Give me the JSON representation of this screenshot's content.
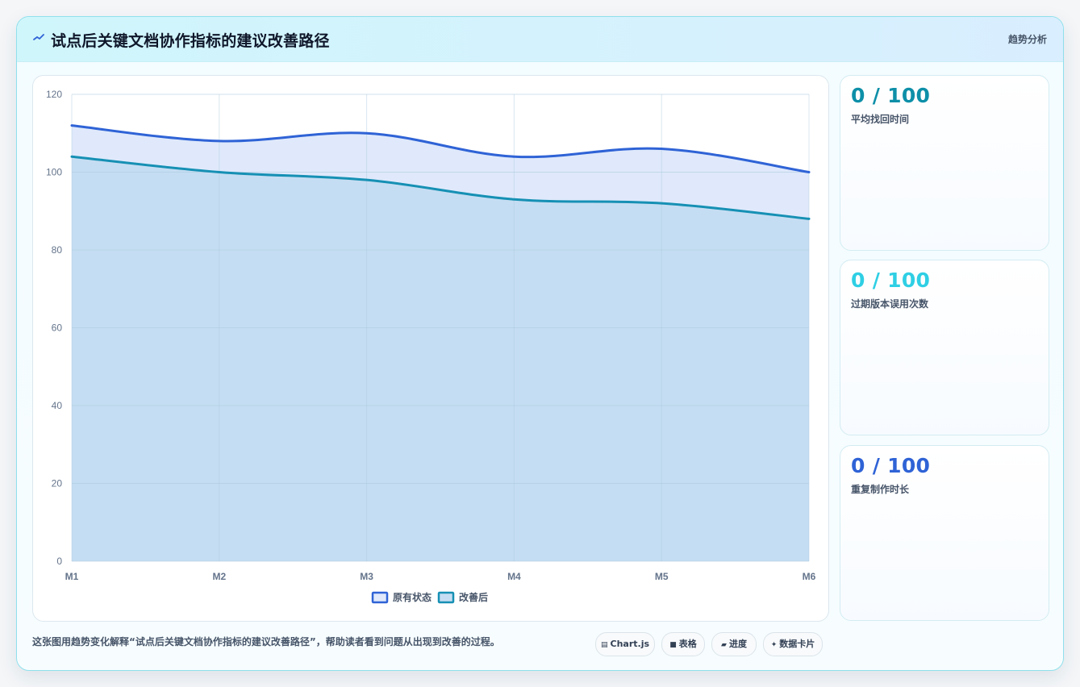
{
  "header": {
    "title": "试点后关键文档协作指标的建议改善路径",
    "tag": "趋势分析",
    "logo_icon": "trend-line-icon"
  },
  "chart_data": {
    "type": "area",
    "categories": [
      "M1",
      "M2",
      "M3",
      "M4",
      "M5",
      "M6"
    ],
    "series": [
      {
        "name": "原有状态",
        "values": [
          112,
          108,
          110,
          104,
          106,
          100
        ],
        "color": "#2f63d6",
        "fill": "#dfe9fb"
      },
      {
        "name": "改善后",
        "values": [
          104,
          100,
          98,
          93,
          92,
          88
        ],
        "color": "#1690b4",
        "fill": "#c5ddf2"
      }
    ],
    "ylim": [
      0,
      120
    ],
    "yticks": [
      0,
      20,
      40,
      60,
      80,
      100,
      120
    ],
    "grid": true,
    "legend": "bottom-center"
  },
  "metrics": [
    {
      "value": "0 / 100",
      "label": "平均找回时间",
      "color": "#0e8fa8"
    },
    {
      "value": "0 / 100",
      "label": "过期版本误用次数",
      "color": "#2fcfe4"
    },
    {
      "value": "0 / 100",
      "label": "重复制作时长",
      "color": "#2f63d6"
    }
  ],
  "footer": {
    "description": "这张图用趋势变化解释“试点后关键文档协作指标的建议改善路径”，帮助读者看到问题从出现到改善的过程。",
    "pills": [
      {
        "icon": "▤",
        "icon_name": "chart-icon",
        "label": "Chart.js"
      },
      {
        "icon": "■",
        "icon_name": "table-icon",
        "label": "表格"
      },
      {
        "icon": "▰",
        "icon_name": "progress-icon",
        "label": "进度"
      },
      {
        "icon": "✦",
        "icon_name": "sparkle-icon",
        "label": "数据卡片"
      }
    ]
  }
}
